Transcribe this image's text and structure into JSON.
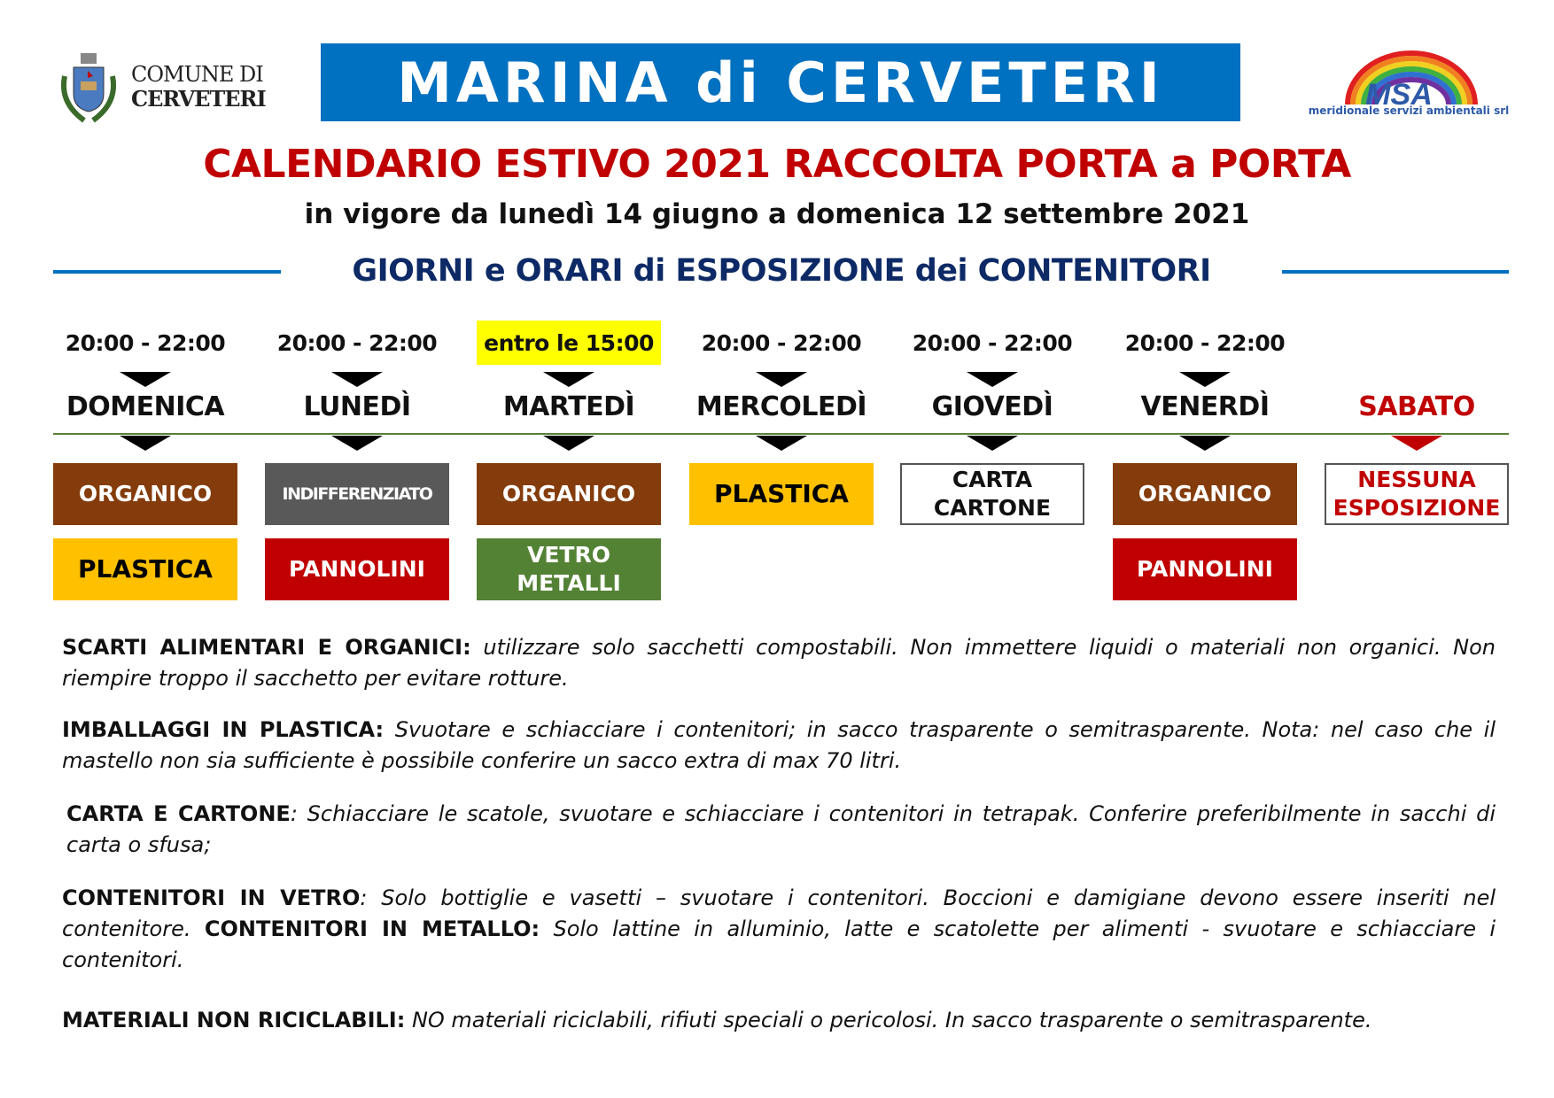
{
  "header": {
    "comune_line1": "COMUNE DI",
    "comune_line2": "CERVETERI",
    "banner": "MARINA di CERVETERI",
    "msa_logo": "MSA",
    "msa_subtitle": "meridionale servizi ambientali srl"
  },
  "title": "CALENDARIO ESTIVO 2021 RACCOLTA PORTA a PORTA",
  "subtitle": "in vigore da lunedì 14 giugno a domenica 12 settembre 2021",
  "heading": "GIORNI e ORARI di ESPOSIZIONE dei CONTENITORI",
  "colors": {
    "banner": "#0070c0",
    "title": "#c00000",
    "heading": "#0d2a66",
    "organico": "#843c0c",
    "indifferenziato": "#595959",
    "plastica": "#ffc000",
    "pannolini": "#c00000",
    "vetro": "#548235"
  },
  "days": [
    {
      "time": "20:00 - 22:00",
      "name": "DOMENICA",
      "items": [
        "ORGANICO",
        "PLASTICA"
      ]
    },
    {
      "time": "20:00 - 22:00",
      "name": "LUNEDÌ",
      "items": [
        "INDIFFERENZIATO",
        "PANNOLINI"
      ]
    },
    {
      "time": "entro le 15:00",
      "name": "MARTEDÌ",
      "items": [
        "ORGANICO",
        "VETRO",
        "METALLI"
      ]
    },
    {
      "time": "20:00 - 22:00",
      "name": "MERCOLEDÌ",
      "items": [
        "PLASTICA"
      ]
    },
    {
      "time": "20:00 - 22:00",
      "name": "GIOVEDÌ",
      "items": [
        "CARTA",
        "CARTONE"
      ]
    },
    {
      "time": "20:00 - 22:00",
      "name": "VENERDÌ",
      "items": [
        "ORGANICO",
        "PANNOLINI"
      ]
    },
    {
      "time": "",
      "name": "SABATO",
      "items": [
        "NESSUNA",
        "ESPOSIZIONE"
      ]
    }
  ],
  "notes": [
    {
      "label": "SCARTI ALIMENTARI E ORGANICI:",
      "text": " utilizzare solo sacchetti compostabili. Non immettere liquidi o materiali non organici. Non riempire troppo il sacchetto per evitare rotture."
    },
    {
      "label": "IMBALLAGGI IN PLASTICA:",
      "text": " Svuotare e schiacciare i contenitori; in sacco trasparente o semitrasparente. Nota: nel caso che il mastello non sia sufficiente è possibile conferire un sacco extra di max 70 litri."
    },
    {
      "label": "CARTA E CARTONE",
      "text": ":  Schiacciare le scatole, svuotare e schiacciare i contenitori in tetrapak. Conferire preferibilmente in sacchi di carta o sfusa;"
    },
    {
      "label": "CONTENITORI IN VETRO",
      "text": ": Solo bottiglie e vasetti – svuotare i contenitori. Boccioni e damigiane devono essere inseriti nel contenitore.  ",
      "label2": "CONTENITORI IN METALLO:",
      "text2": " Solo lattine in alluminio, latte e scatolette per alimenti  - svuotare e schiacciare i contenitori."
    },
    {
      "label": "MATERIALI NON RICICLABILI:",
      "text": " NO materiali riciclabili, rifiuti speciali o pericolosi. In sacco trasparente o semitrasparente."
    }
  ]
}
